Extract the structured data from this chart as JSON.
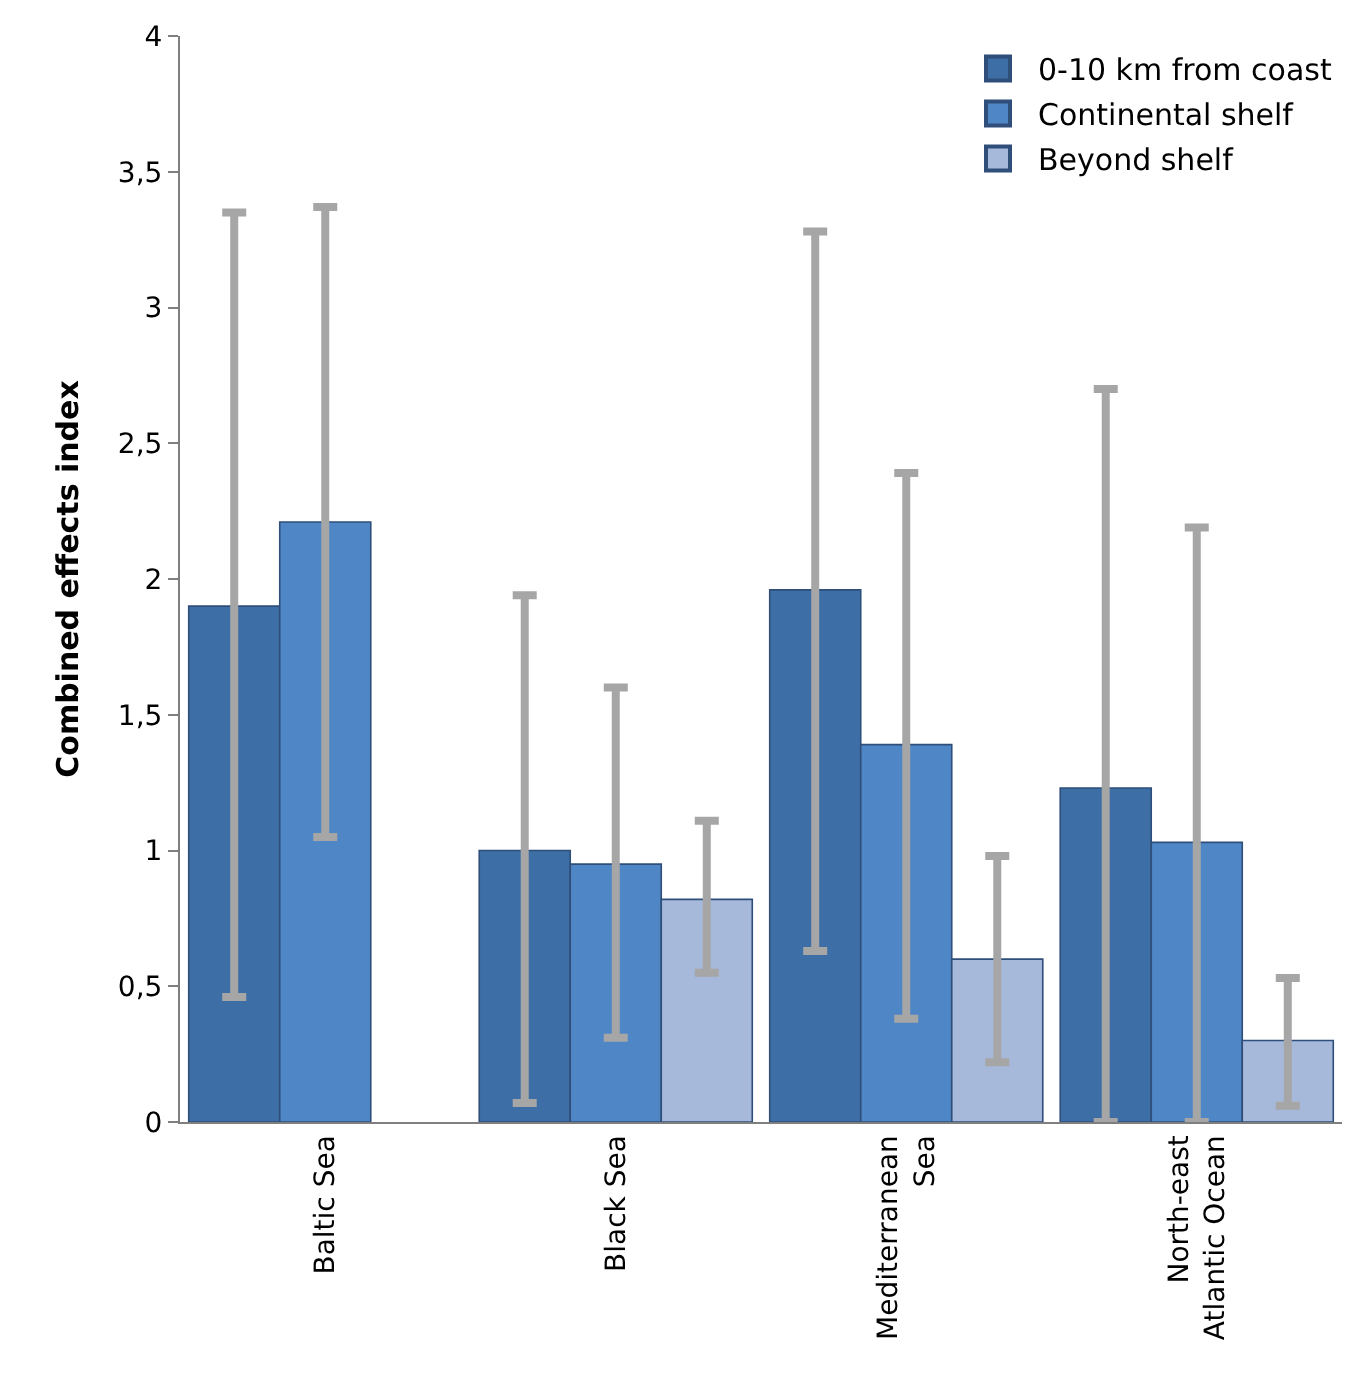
{
  "chart_data": {
    "type": "bar",
    "ylabel": "Combined effects index",
    "categories": [
      "Baltic Sea",
      "Black Sea",
      "Mediterranean Sea",
      "North-east Atlantic Ocean"
    ],
    "series": [
      {
        "name": "0-10 km from coast",
        "color": "#3d6ea5",
        "values": [
          1.9,
          1.0,
          1.96,
          1.23
        ],
        "errors": [
          [
            0.46,
            3.35
          ],
          [
            0.07,
            1.94
          ],
          [
            0.63,
            3.28
          ],
          [
            0.0,
            2.7
          ]
        ]
      },
      {
        "name": "Continental shelf",
        "color": "#4f86c6",
        "values": [
          2.21,
          0.95,
          1.39,
          1.03
        ],
        "errors": [
          [
            1.05,
            3.37
          ],
          [
            0.31,
            1.6
          ],
          [
            0.38,
            2.39
          ],
          [
            0.0,
            2.19
          ]
        ]
      },
      {
        "name": "Beyond shelf",
        "color": "#a7b9db",
        "values": [
          null,
          0.82,
          0.6,
          0.3
        ],
        "errors": [
          null,
          [
            0.55,
            1.11
          ],
          [
            0.22,
            0.98
          ],
          [
            0.06,
            0.53
          ]
        ]
      }
    ],
    "ylim": [
      0,
      4
    ],
    "yticks": [
      0,
      {
        "value": 0.5,
        "label": "0,5"
      },
      1,
      {
        "value": 1.5,
        "label": "1,5"
      },
      2,
      {
        "value": 2.5,
        "label": "2,5"
      },
      3,
      {
        "value": 3.5,
        "label": "3,5"
      },
      4
    ],
    "legend": "top right"
  }
}
